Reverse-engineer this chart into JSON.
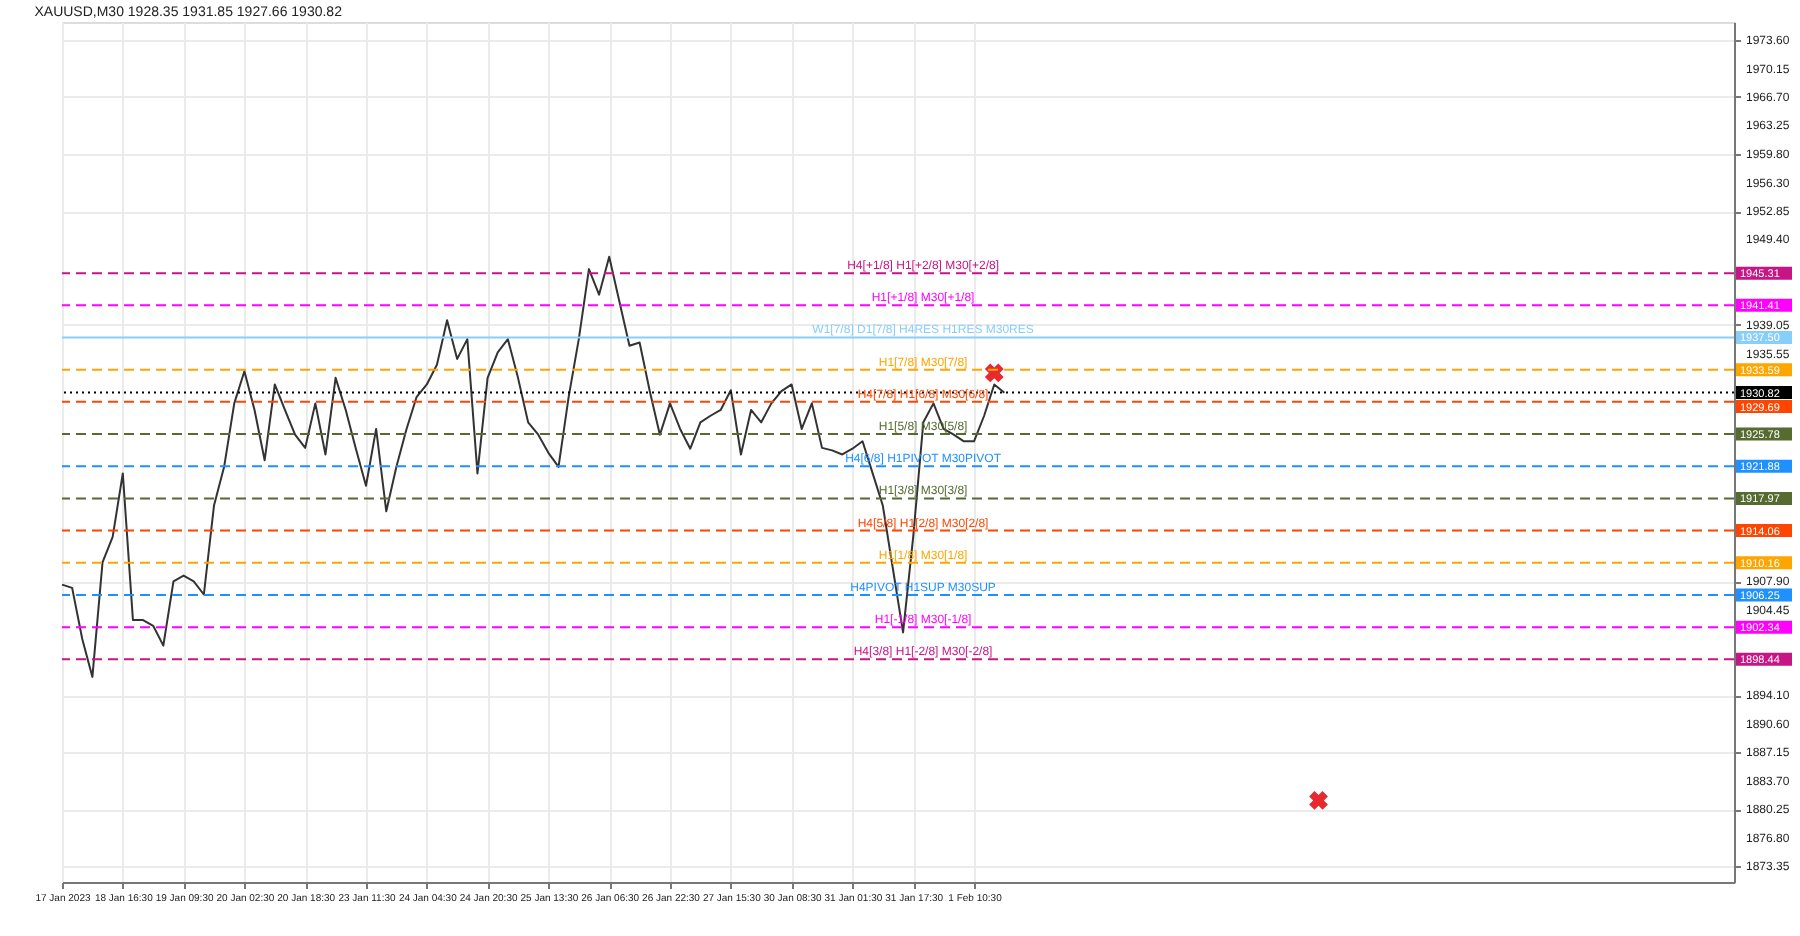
{
  "chart_data": {
    "type": "line",
    "title": "XAUUSD,M30  1928.35 1931.85 1927.66 1930.82",
    "categories": [
      "17 Jan 2023",
      null,
      null,
      null,
      null,
      null,
      "18 Jan 16:30",
      null,
      null,
      null,
      null,
      null,
      "19 Jan 09:30",
      null,
      null,
      null,
      null,
      null,
      "20 Jan 02:30",
      null,
      null,
      null,
      null,
      null,
      "20 Jan 18:30",
      null,
      null,
      null,
      null,
      null,
      "23 Jan 11:30",
      null,
      null,
      null,
      null,
      null,
      "24 Jan 04:30",
      null,
      null,
      null,
      null,
      null,
      "24 Jan 20:30",
      null,
      null,
      null,
      null,
      null,
      "25 Jan 13:30",
      null,
      null,
      null,
      null,
      null,
      "26 Jan 06:30",
      null,
      null,
      null,
      null,
      null,
      "26 Jan 22:30",
      null,
      null,
      null,
      null,
      null,
      "27 Jan 15:30",
      null,
      null,
      null,
      null,
      null,
      "30 Jan 08:30",
      null,
      null,
      null,
      null,
      null,
      "31 Jan 01:30",
      null,
      null,
      null,
      null,
      null,
      "31 Jan 17:30",
      null,
      null,
      null,
      null,
      null,
      "1 Feb 10:30",
      null,
      null,
      null,
      null,
      null,
      null,
      null,
      null,
      null,
      null,
      null,
      null,
      null,
      null,
      null,
      null,
      null,
      null,
      null,
      null,
      null,
      null,
      null,
      null,
      null,
      null,
      null,
      null,
      null,
      null,
      null,
      null,
      null,
      null,
      null,
      null,
      null,
      null,
      null,
      null,
      null,
      null,
      null,
      null,
      null,
      null,
      null,
      null,
      null,
      null,
      null,
      null,
      null,
      null,
      null,
      null,
      null,
      null,
      null,
      null,
      null,
      null,
      null,
      null,
      null,
      null,
      null,
      null,
      null,
      null,
      null,
      null,
      null,
      null,
      null
    ],
    "ylim": [
      1871.4,
      1975.8
    ],
    "yticks": [
      {
        "value": 1973.6,
        "label": "1973.60"
      },
      {
        "value": 1970.15,
        "label": "1970.15"
      },
      {
        "value": 1966.7,
        "label": "1966.70"
      },
      {
        "value": 1963.25,
        "label": "1963.25"
      },
      {
        "value": 1959.8,
        "label": "1959.80"
      },
      {
        "value": 1956.3,
        "label": "1956.30"
      },
      {
        "value": 1952.85,
        "label": "1952.85"
      },
      {
        "value": 1949.4,
        "label": "1949.40"
      },
      {
        "value": 1939.05,
        "label": "1939.05"
      },
      {
        "value": 1935.55,
        "label": "1935.55"
      },
      {
        "value": 1907.9,
        "label": "1907.90"
      },
      {
        "value": 1904.45,
        "label": "1904.45"
      },
      {
        "value": 1894.1,
        "label": "1894.10"
      },
      {
        "value": 1890.6,
        "label": "1890.60"
      },
      {
        "value": 1887.15,
        "label": "1887.15"
      },
      {
        "value": 1883.7,
        "label": "1883.70"
      },
      {
        "value": 1880.25,
        "label": "1880.25"
      },
      {
        "value": 1876.8,
        "label": "1876.80"
      },
      {
        "value": 1873.35,
        "label": "1873.35"
      }
    ],
    "grid": true,
    "series": [
      {
        "color": "#333333",
        "values": [
          1907.5,
          1907.1,
          1900.9,
          1896.3,
          1910.2,
          1913.3,
          1921.0,
          1903.2,
          1903.2,
          1902.5,
          1900.1,
          1907.9,
          1908.6,
          1907.9,
          1906.3,
          1917.1,
          1921.8,
          1929.5,
          1933.4,
          1928.7,
          1922.6,
          1931.8,
          1928.7,
          1925.7,
          1924.1,
          1929.5,
          1923.3,
          1932.6,
          1928.7,
          1924.0,
          1919.5,
          1926.4,
          1916.4,
          1921.8,
          1926.4,
          1930.3,
          1931.8,
          1934.2,
          1939.6,
          1934.9,
          1937.3,
          1921.0,
          1932.6,
          1935.7,
          1937.3,
          1932.6,
          1927.2,
          1925.7,
          1923.5,
          1921.8,
          1930.3,
          1937.3,
          1945.8,
          1942.7,
          1947.3,
          1941.9,
          1936.5,
          1936.9,
          1931.0,
          1925.7,
          1929.5,
          1926.4,
          1924.0,
          1927.2,
          1928.0,
          1928.7,
          1931.1,
          1923.3,
          1928.7,
          1927.2,
          1929.5,
          1931.0,
          1931.8,
          1926.4,
          1929.5,
          1924.1,
          1923.8,
          1923.3,
          1924.0,
          1924.9,
          1921.0,
          1917.1,
          1909.4,
          1901.7,
          1913.3,
          1927.2,
          1929.5,
          1926.4,
          1925.7,
          1924.9,
          1924.9,
          1928.0,
          1931.8,
          1930.8,
          null,
          null,
          null,
          null,
          null,
          null,
          null,
          null,
          null,
          null,
          null,
          null,
          null,
          null,
          null,
          null,
          null,
          null,
          null,
          null,
          null,
          null,
          null,
          null,
          null,
          null,
          null,
          null,
          null,
          null,
          null,
          null,
          null,
          null,
          null,
          null,
          null,
          null,
          null,
          null,
          null,
          null,
          null,
          null,
          null,
          null,
          null,
          null,
          null,
          null,
          null,
          null,
          null,
          null,
          null,
          null,
          null,
          null,
          null,
          null,
          null,
          null,
          null,
          null,
          null,
          null,
          null,
          null,
          null,
          null,
          null,
          null
        ]
      },
      {
        "type": "scatter",
        "marker": "cross",
        "color": "#e8292d",
        "values": [
          null,
          null,
          null,
          null,
          null,
          null,
          null,
          null,
          null,
          null,
          null,
          null,
          null,
          null,
          null,
          null,
          null,
          null,
          null,
          null,
          null,
          null,
          null,
          null,
          null,
          null,
          null,
          null,
          null,
          null,
          null,
          null,
          null,
          null,
          null,
          null,
          null,
          null,
          null,
          null,
          null,
          null,
          null,
          null,
          null,
          null,
          null,
          null,
          null,
          null,
          null,
          null,
          null,
          null,
          null,
          null,
          null,
          null,
          null,
          null,
          null,
          null,
          null,
          null,
          null,
          null,
          null,
          null,
          null,
          null,
          null,
          null,
          null,
          null,
          null,
          null,
          null,
          null,
          null,
          null,
          null,
          null,
          null,
          null,
          null,
          null,
          null,
          null,
          null,
          null,
          null,
          null,
          1933.2,
          null,
          null,
          null,
          null,
          null,
          null,
          null,
          null,
          null,
          null,
          null,
          null,
          null,
          null,
          null,
          null,
          null,
          null,
          null,
          null,
          null,
          null,
          null,
          null,
          null,
          null,
          null,
          null,
          null,
          null,
          null,
          1881.3,
          null,
          null,
          null,
          null,
          null,
          null,
          null,
          null,
          null,
          null,
          null,
          null,
          null,
          null,
          null,
          null,
          null,
          null,
          null,
          null,
          null,
          null,
          null,
          null,
          null,
          null,
          null,
          null,
          null,
          null,
          null,
          null,
          null,
          null,
          null,
          null,
          null,
          null,
          null,
          null,
          null
        ]
      }
    ],
    "ref_lines": [
      {
        "axis": "y",
        "value": 1945.31,
        "label": "H4[+1/8] H1[+2/8] M30[+2/8]",
        "color": "#c71585",
        "line_style": "dashed"
      },
      {
        "axis": "y",
        "value": 1941.41,
        "label": "H1[+1/8] M30[+1/8]",
        "color": "#ff00ff",
        "line_style": "dashed"
      },
      {
        "axis": "y",
        "value": 1937.5,
        "label": "W1[7/8] D1[7/8] H4RES H1RES M30RES",
        "color": "#87cefa",
        "line_style": "solid"
      },
      {
        "axis": "y",
        "value": 1933.59,
        "label": "H1[7/8] M30[7/8]",
        "color": "#ffa500",
        "line_style": "dashed"
      },
      {
        "axis": "y",
        "value": 1930.82,
        "label": null,
        "color": "#000000",
        "line_style": "dotted"
      },
      {
        "axis": "y",
        "value": 1929.69,
        "label": "H4[7/8] H1[6/8] M30[6/8]",
        "color": "#ff4500",
        "line_style": "dashed"
      },
      {
        "axis": "y",
        "value": 1925.78,
        "label": "H1[5/8] M30[5/8]",
        "color": "#556b2f",
        "line_style": "dashed"
      },
      {
        "axis": "y",
        "value": 1921.88,
        "label": "H4[6/8] H1PIVOT M30PIVOT",
        "color": "#1e90ff",
        "line_style": "dashed"
      },
      {
        "axis": "y",
        "value": 1917.97,
        "label": "H1[3/8] M30[3/8]",
        "color": "#556b2f",
        "line_style": "dashed"
      },
      {
        "axis": "y",
        "value": 1914.06,
        "label": "H4[5/8] H1[2/8] M30[2/8]",
        "color": "#ff4500",
        "line_style": "dashed"
      },
      {
        "axis": "y",
        "value": 1910.16,
        "label": "H1[1/8] M30[1/8]",
        "color": "#ffa500",
        "line_style": "dashed"
      },
      {
        "axis": "y",
        "value": 1906.25,
        "label": "H4PIVOT H1SUP M30SUP",
        "color": "#1e90ff",
        "line_style": "dashed"
      },
      {
        "axis": "y",
        "value": 1902.34,
        "label": "H1[-1/8] M30[-1/8]",
        "color": "#ff00ff",
        "line_style": "dashed"
      },
      {
        "axis": "y",
        "value": 1898.44,
        "label": "H4[3/8] H1[-2/8] M30[-2/8]",
        "color": "#c71585",
        "line_style": "dashed"
      }
    ],
    "annotations": [
      "1945.31",
      "1941.41",
      "1937.50",
      "1933.59",
      "1930.82",
      "1929.69",
      "1925.78",
      "1921.88",
      "1917.97",
      "1914.06",
      "1910.16",
      "1906.25",
      "1902.34",
      "1898.44"
    ]
  }
}
